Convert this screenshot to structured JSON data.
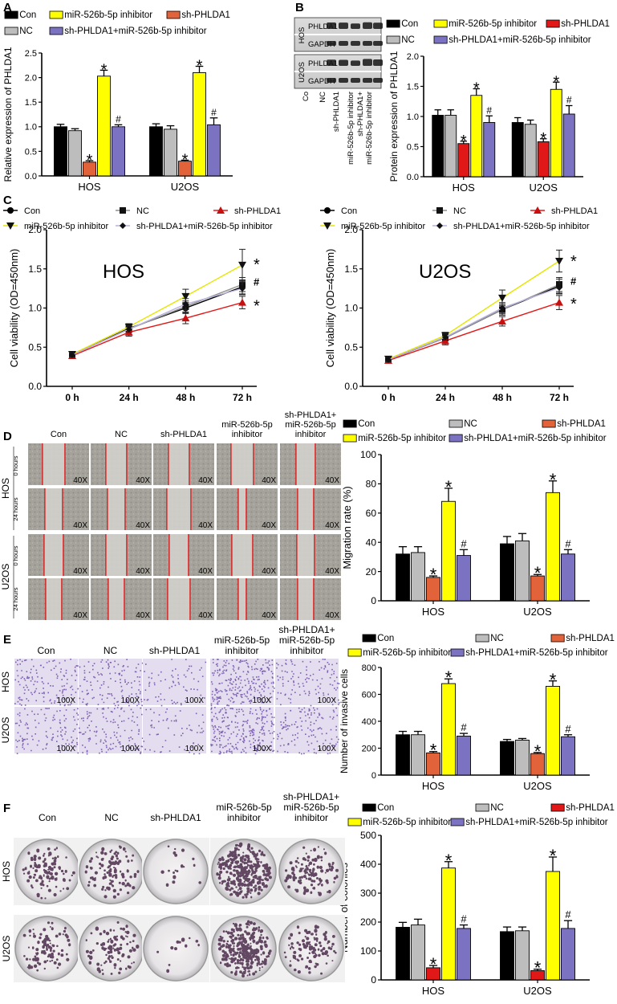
{
  "colors": {
    "con": "#000000",
    "nc": "#bdbdbd",
    "sh": "#e2623a",
    "sh_red": "#e01818",
    "inhibitor": "#ffff00",
    "combo": "#7b72c2",
    "line_combo": "#b7b3dc",
    "scratch": "#e01010",
    "stain": "#6b4ca6",
    "colony": "#4a2a4a"
  },
  "panels": {
    "a": "A",
    "b": "B",
    "c": "C",
    "d": "D",
    "e": "E",
    "f": "F"
  },
  "legend": {
    "con": "Con",
    "nc": "NC",
    "sh": "sh-PHLDA1",
    "inhibitor": "miR-526b-5p inhibitor",
    "combo": "sh-PHLDA1+miR-526b-5p inhibitor"
  },
  "significance": {
    "star": "*",
    "hash": "#"
  },
  "cell_lines": [
    "HOS",
    "U2OS"
  ],
  "western_blot": {
    "cell_lines": [
      "HOS",
      "U2OS"
    ],
    "bands": [
      "PHLDA1",
      "GAPDH"
    ],
    "lanes": [
      "Co",
      "NC",
      "sh-PHLDA1",
      "miR-526b-5p inhibitor",
      "sh-PHLDA1+ miR-526b-5p inhibitor"
    ]
  },
  "images": {
    "row_labels_hos": [
      "0 hours",
      "24 hours"
    ],
    "row_labels_u2os": [
      "0 hours",
      "24 hours"
    ],
    "mag_scratch": "40X",
    "mag_transwell": "100X",
    "columns_d": [
      "Con",
      "NC",
      "sh-PHLDA1",
      "miR-526b-5p inhibitor",
      "sh-PHLDA1+ miR-526b-5p inhibitor"
    ],
    "columns_e": [
      "Con",
      "NC",
      "sh-PHLDA1",
      "miR-526b-5p inhibitor",
      "sh-PHLDA1+ miR-526b-5p inhibitor"
    ],
    "columns_f": [
      "Con",
      "NC",
      "sh-PHLDA1",
      "miR-526b-5p inhibitor",
      "sh-PHLDA1+ miR-526b-5p inhibitor"
    ],
    "row_names": [
      "HOS",
      "U2OS"
    ]
  },
  "chart_data": [
    {
      "id": "A",
      "type": "bar",
      "ylabel": "Relative expression of PHLDA1",
      "categories": [
        "HOS",
        "U2OS"
      ],
      "ylim": [
        0,
        2.5
      ],
      "yticks": [
        0.0,
        0.5,
        1.0,
        1.5,
        2.0,
        2.5
      ],
      "decimals": 1,
      "series": [
        {
          "name": "Con",
          "values": [
            1.0,
            1.0
          ],
          "err": [
            0.05,
            0.06
          ],
          "mark": [
            "",
            ""
          ]
        },
        {
          "name": "NC",
          "values": [
            0.92,
            0.95
          ],
          "err": [
            0.04,
            0.07
          ],
          "mark": [
            "",
            ""
          ]
        },
        {
          "name": "sh-PHLDA1",
          "values": [
            0.28,
            0.3
          ],
          "err": [
            0.03,
            0.02
          ],
          "mark": [
            "*",
            "*"
          ]
        },
        {
          "name": "miR-526b-5p inhibitor",
          "values": [
            2.03,
            2.1
          ],
          "err": [
            0.12,
            0.13
          ],
          "mark": [
            "*",
            "*"
          ]
        },
        {
          "name": "sh-PHLDA1+miR-526b-5p inhibitor",
          "values": [
            1.0,
            1.04
          ],
          "err": [
            0.04,
            0.14
          ],
          "mark": [
            "#",
            "#"
          ]
        }
      ]
    },
    {
      "id": "B",
      "type": "bar",
      "ylabel": "Protein expression of PHLDA1",
      "categories": [
        "HOS",
        "U2OS"
      ],
      "ylim": [
        0,
        2.0
      ],
      "yticks": [
        0.0,
        0.5,
        1.0,
        1.5,
        2.0
      ],
      "decimals": 1,
      "series": [
        {
          "name": "Con",
          "values": [
            1.02,
            0.9
          ],
          "err": [
            0.09,
            0.08
          ],
          "mark": [
            "",
            ""
          ]
        },
        {
          "name": "NC",
          "values": [
            1.02,
            0.87
          ],
          "err": [
            0.09,
            0.07
          ],
          "mark": [
            "",
            ""
          ]
        },
        {
          "name": "sh-PHLDA1",
          "values": [
            0.55,
            0.58
          ],
          "err": [
            0.04,
            0.05
          ],
          "mark": [
            "*",
            "*"
          ]
        },
        {
          "name": "miR-526b-5p inhibitor",
          "values": [
            1.35,
            1.45
          ],
          "err": [
            0.11,
            0.12
          ],
          "mark": [
            "*",
            "*"
          ]
        },
        {
          "name": "sh-PHLDA1+miR-526b-5p inhibitor",
          "values": [
            0.9,
            1.04
          ],
          "err": [
            0.11,
            0.14
          ],
          "mark": [
            "#",
            "#"
          ]
        }
      ]
    },
    {
      "id": "C-HOS",
      "type": "line",
      "title": "HOS",
      "ylabel": "Cell viability (OD=450nm)",
      "x": [
        "0 h",
        "24 h",
        "48 h",
        "72 h"
      ],
      "ylim": [
        0,
        2.0
      ],
      "yticks": [
        0.0,
        0.5,
        1.0,
        1.5,
        2.0
      ],
      "decimals": 1,
      "series": [
        {
          "name": "Con",
          "values": [
            0.4,
            0.74,
            1.0,
            1.27
          ],
          "err": [
            0.03,
            0.04,
            0.07,
            0.09
          ]
        },
        {
          "name": "NC",
          "values": [
            0.4,
            0.73,
            1.02,
            1.3
          ],
          "err": [
            0.03,
            0.04,
            0.07,
            0.09
          ]
        },
        {
          "name": "sh-PHLDA1",
          "values": [
            0.39,
            0.69,
            0.87,
            1.07
          ],
          "err": [
            0.03,
            0.05,
            0.07,
            0.08
          ]
        },
        {
          "name": "miR-526b-5p inhibitor",
          "values": [
            0.41,
            0.76,
            1.15,
            1.55
          ],
          "err": [
            0.03,
            0.04,
            0.09,
            0.2
          ]
        },
        {
          "name": "sh-PHLDA1+miR-526b-5p inhibitor",
          "values": [
            0.4,
            0.73,
            1.05,
            1.25
          ],
          "err": [
            0.03,
            0.04,
            0.07,
            0.08
          ]
        }
      ],
      "end_marks": [
        {
          "text": "*",
          "value": 1.6
        },
        {
          "text": "#",
          "value": 1.33
        },
        {
          "text": "*",
          "value": 1.07
        }
      ]
    },
    {
      "id": "C-U2OS",
      "type": "line",
      "title": "U2OS",
      "ylabel": "Cell viability (OD=450nm)",
      "x": [
        "0 h",
        "24 h",
        "48 h",
        "72 h"
      ],
      "ylim": [
        0,
        2.0
      ],
      "yticks": [
        0.0,
        0.5,
        1.0,
        1.5,
        2.0
      ],
      "decimals": 1,
      "series": [
        {
          "name": "Con",
          "values": [
            0.34,
            0.62,
            0.98,
            1.28
          ],
          "err": [
            0.03,
            0.04,
            0.07,
            0.09
          ]
        },
        {
          "name": "NC",
          "values": [
            0.34,
            0.62,
            0.98,
            1.3
          ],
          "err": [
            0.03,
            0.04,
            0.07,
            0.09
          ]
        },
        {
          "name": "sh-PHLDA1",
          "values": [
            0.33,
            0.58,
            0.83,
            1.07
          ],
          "err": [
            0.03,
            0.05,
            0.06,
            0.09
          ]
        },
        {
          "name": "miR-526b-5p inhibitor",
          "values": [
            0.35,
            0.65,
            1.13,
            1.6
          ],
          "err": [
            0.03,
            0.04,
            0.1,
            0.14
          ]
        },
        {
          "name": "sh-PHLDA1+miR-526b-5p inhibitor",
          "values": [
            0.34,
            0.63,
            1.0,
            1.26
          ],
          "err": [
            0.03,
            0.04,
            0.07,
            0.08
          ]
        }
      ],
      "end_marks": [
        {
          "text": "*",
          "value": 1.64
        },
        {
          "text": "#",
          "value": 1.34
        },
        {
          "text": "*",
          "value": 1.1
        }
      ]
    },
    {
      "id": "D",
      "type": "bar",
      "ylabel": "Migration rate (%)",
      "categories": [
        "HOS",
        "U2OS"
      ],
      "ylim": [
        0,
        100
      ],
      "yticks": [
        0,
        20,
        40,
        60,
        80,
        100
      ],
      "decimals": 0,
      "series": [
        {
          "name": "Con",
          "values": [
            32,
            39
          ],
          "err": [
            5,
            5
          ],
          "mark": [
            "",
            ""
          ]
        },
        {
          "name": "NC",
          "values": [
            33,
            41
          ],
          "err": [
            4,
            5
          ],
          "mark": [
            "",
            ""
          ]
        },
        {
          "name": "sh-PHLDA1",
          "values": [
            16,
            17
          ],
          "err": [
            1,
            1
          ],
          "mark": [
            "*",
            "*"
          ]
        },
        {
          "name": "miR-526b-5p inhibitor",
          "values": [
            68,
            74
          ],
          "err": [
            9,
            8
          ],
          "mark": [
            "*",
            "*"
          ]
        },
        {
          "name": "sh-PHLDA1+miR-526b-5p inhibitor",
          "values": [
            31,
            32
          ],
          "err": [
            4,
            3
          ],
          "mark": [
            "#",
            "#"
          ]
        }
      ]
    },
    {
      "id": "E",
      "type": "bar",
      "ylabel": "Number of invasive cells",
      "categories": [
        "HOS",
        "U2OS"
      ],
      "ylim": [
        0,
        800
      ],
      "yticks": [
        0,
        200,
        400,
        600,
        800
      ],
      "decimals": 0,
      "series": [
        {
          "name": "Con",
          "values": [
            300,
            250
          ],
          "err": [
            25,
            15
          ],
          "mark": [
            "",
            ""
          ]
        },
        {
          "name": "NC",
          "values": [
            300,
            260
          ],
          "err": [
            25,
            12
          ],
          "mark": [
            "",
            ""
          ]
        },
        {
          "name": "sh-PHLDA1",
          "values": [
            165,
            160
          ],
          "err": [
            10,
            8
          ],
          "mark": [
            "*",
            "*"
          ]
        },
        {
          "name": "miR-526b-5p inhibitor",
          "values": [
            680,
            660
          ],
          "err": [
            35,
            40
          ],
          "mark": [
            "*",
            "*"
          ]
        },
        {
          "name": "sh-PHLDA1+miR-526b-5p inhibitor",
          "values": [
            290,
            285
          ],
          "err": [
            20,
            15
          ],
          "mark": [
            "#",
            "#"
          ]
        }
      ]
    },
    {
      "id": "F",
      "type": "bar",
      "ylabel": "Number of colonies",
      "categories": [
        "HOS",
        "U2OS"
      ],
      "ylim": [
        0,
        500
      ],
      "yticks": [
        0,
        100,
        200,
        300,
        400,
        500
      ],
      "decimals": 0,
      "series": [
        {
          "name": "Con",
          "values": [
            182,
            167
          ],
          "err": [
            17,
            16
          ],
          "mark": [
            "",
            ""
          ]
        },
        {
          "name": "NC",
          "values": [
            190,
            170
          ],
          "err": [
            20,
            13
          ],
          "mark": [
            "",
            ""
          ]
        },
        {
          "name": "sh-PHLDA1",
          "values": [
            42,
            32
          ],
          "err": [
            8,
            5
          ],
          "mark": [
            "*",
            "*"
          ]
        },
        {
          "name": "miR-526b-5p inhibitor",
          "values": [
            387,
            375
          ],
          "err": [
            22,
            50
          ],
          "mark": [
            "*",
            "*"
          ]
        },
        {
          "name": "sh-PHLDA1+miR-526b-5p inhibitor",
          "values": [
            178,
            178
          ],
          "err": [
            12,
            27
          ],
          "mark": [
            "#",
            "#"
          ]
        }
      ]
    }
  ]
}
